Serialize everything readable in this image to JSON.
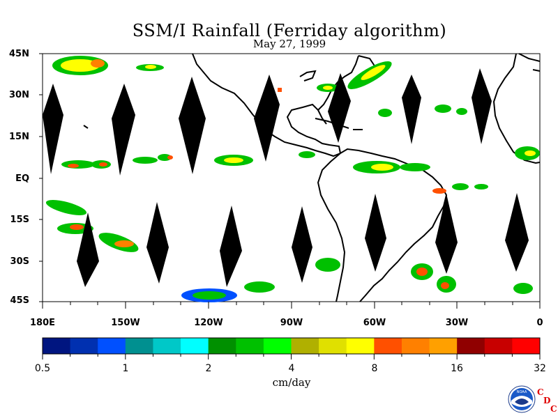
{
  "title": "SSM/I Rainfall (Ferriday algorithm)",
  "date": "May 27, 1999",
  "lat_labels": [
    "45N",
    "30N",
    "15N",
    "EQ",
    "15S",
    "30S",
    "45S"
  ],
  "lon_labels": [
    "180E",
    "150W",
    "120W",
    "90W",
    "60W",
    "30W",
    "0"
  ],
  "colorbar": {
    "colors": [
      "#001580",
      "#0030b0",
      "#0050ff",
      "#009090",
      "#00c8c8",
      "#00ffff",
      "#009000",
      "#00c000",
      "#00ff00",
      "#b0b000",
      "#e0e000",
      "#ffff00",
      "#ff5000",
      "#ff8000",
      "#ffa000",
      "#900000",
      "#c80000",
      "#ff0000"
    ],
    "tick_labels": [
      "0.5",
      "1",
      "2",
      "4",
      "8",
      "16",
      "32"
    ],
    "units": "cm/day"
  },
  "logo": {
    "text": "NOAA",
    "cdc_letters": [
      "C",
      "D",
      "C"
    ]
  }
}
